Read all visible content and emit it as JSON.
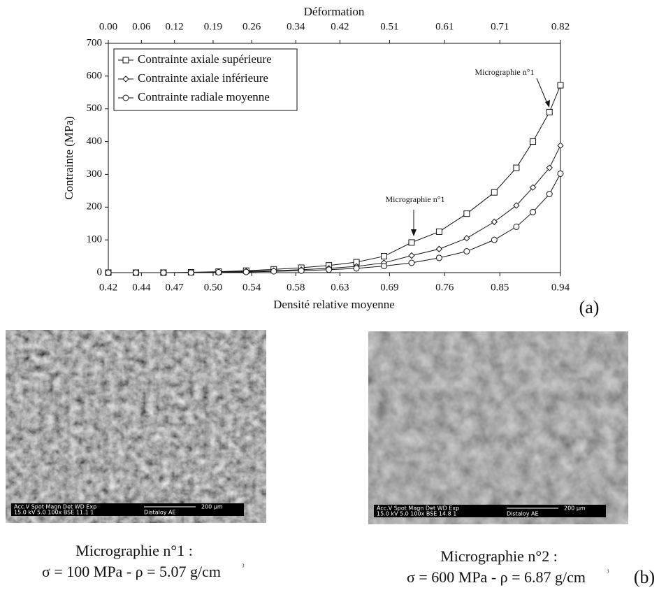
{
  "chart_data": {
    "type": "line",
    "title": "Déformation",
    "x_label": "Densité relative moyenne",
    "y_label": "Contrainte (MPa)",
    "x": [
      0,
      0.05,
      0.1,
      0.15,
      0.2,
      0.25,
      0.3,
      0.35,
      0.4,
      0.45,
      0.5,
      0.55,
      0.6,
      0.65,
      0.7,
      0.74,
      0.77,
      0.8,
      0.82
    ],
    "series": [
      {
        "name": "Contrainte axiale supérieure",
        "color": "#111111",
        "marker": "square",
        "values": [
          0,
          0,
          0,
          1,
          3,
          6,
          10,
          15,
          22,
          32,
          50,
          92,
          125,
          180,
          245,
          320,
          400,
          490,
          572
        ]
      },
      {
        "name": "Contrainte axiale inférieure",
        "color": "#111111",
        "marker": "diamond",
        "values": [
          0,
          0,
          0,
          0,
          2,
          4,
          6,
          9,
          13,
          19,
          30,
          52,
          72,
          105,
          155,
          205,
          260,
          320,
          388
        ]
      },
      {
        "name": "Contrainte radiale moyenne",
        "color": "#111111",
        "marker": "circle",
        "values": [
          0,
          0,
          0,
          0,
          1,
          2,
          4,
          6,
          9,
          13,
          20,
          30,
          45,
          65,
          100,
          140,
          185,
          240,
          302
        ]
      }
    ],
    "xlim": [
      0,
      0.82
    ],
    "xticks": [
      {
        "value": 0,
        "label": "0.00"
      },
      0.06,
      0.12,
      0.19,
      0.26,
      0.34,
      0.42,
      0.51,
      0.61,
      0.71,
      0.82
    ],
    "density_ticks": [
      0.42,
      0.44,
      0.47,
      {
        "value": 0.5,
        "label": "0.50"
      },
      0.54,
      0.58,
      0.63,
      0.69,
      0.76,
      0.85,
      0.94
    ],
    "ylim": [
      0,
      700
    ],
    "yticks": [
      0,
      100,
      200,
      300,
      400,
      500,
      600,
      700
    ],
    "legend": "upper left",
    "annotations": [
      "Micrographie n°1",
      "Micrographie n°1"
    ],
    "panel_label": "(a)"
  },
  "micrographs": [
    {
      "bar": [
        "Acc.V  Spot Magn    Det  WD  Exp",
        "15.0 kV 5.0    100x    BSE  11.1  1",
        "200 µm",
        "Distaloy AE"
      ],
      "caption": [
        "Micrographie n°1 :",
        "σ = 100 MPa - ρ = 5.07 g/cm",
        "3"
      ]
    },
    {
      "bar": [
        "Acc.V  Spot Magn    Det  WD  Exp",
        "15.0 kV 5.0    100x    BSE  14.8  1",
        "200 µm",
        "Distaloy AE"
      ],
      "caption": [
        "Micrographie n°2 :",
        "σ = 600 MPa - ρ = 6.87 g/cm",
        "3"
      ]
    }
  ],
  "panel_label": "(b)"
}
